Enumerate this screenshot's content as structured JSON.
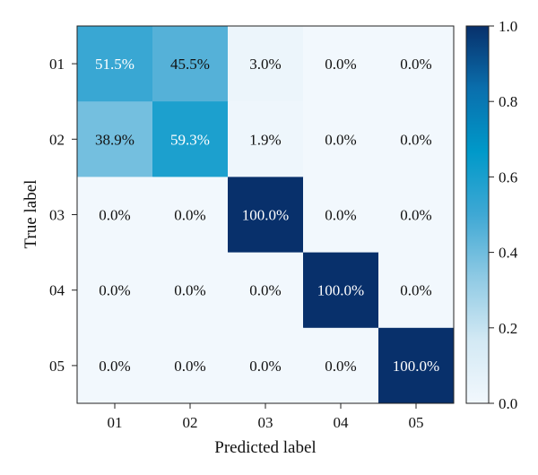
{
  "chart_data": {
    "type": "heatmap",
    "title": "",
    "xlabel": "Predicted label",
    "ylabel": "True label",
    "x_categories": [
      "01",
      "02",
      "03",
      "04",
      "05"
    ],
    "y_categories": [
      "01",
      "02",
      "03",
      "04",
      "05"
    ],
    "values": [
      [
        0.515,
        0.455,
        0.03,
        0.0,
        0.0
      ],
      [
        0.389,
        0.593,
        0.019,
        0.0,
        0.0
      ],
      [
        0.0,
        0.0,
        1.0,
        0.0,
        0.0
      ],
      [
        0.0,
        0.0,
        0.0,
        1.0,
        0.0
      ],
      [
        0.0,
        0.0,
        0.0,
        0.0,
        1.0
      ]
    ],
    "cell_labels": [
      [
        "51.5%",
        "45.5%",
        "3.0%",
        "0.0%",
        "0.0%"
      ],
      [
        "38.9%",
        "59.3%",
        "1.9%",
        "0.0%",
        "0.0%"
      ],
      [
        "0.0%",
        "0.0%",
        "100.0%",
        "0.0%",
        "0.0%"
      ],
      [
        "0.0%",
        "0.0%",
        "0.0%",
        "100.0%",
        "0.0%"
      ],
      [
        "0.0%",
        "0.0%",
        "0.0%",
        "0.0%",
        "100.0%"
      ]
    ],
    "colorbar": {
      "range": [
        0.0,
        1.0
      ],
      "ticks": [
        "0.0",
        "0.2",
        "0.4",
        "0.6",
        "0.8",
        "1.0"
      ],
      "colormap": [
        "#f2f8fd",
        "#d3e9f4",
        "#8fcae4",
        "#3fa8d4",
        "#0099c9",
        "#0a6fad",
        "#08306b"
      ]
    }
  }
}
